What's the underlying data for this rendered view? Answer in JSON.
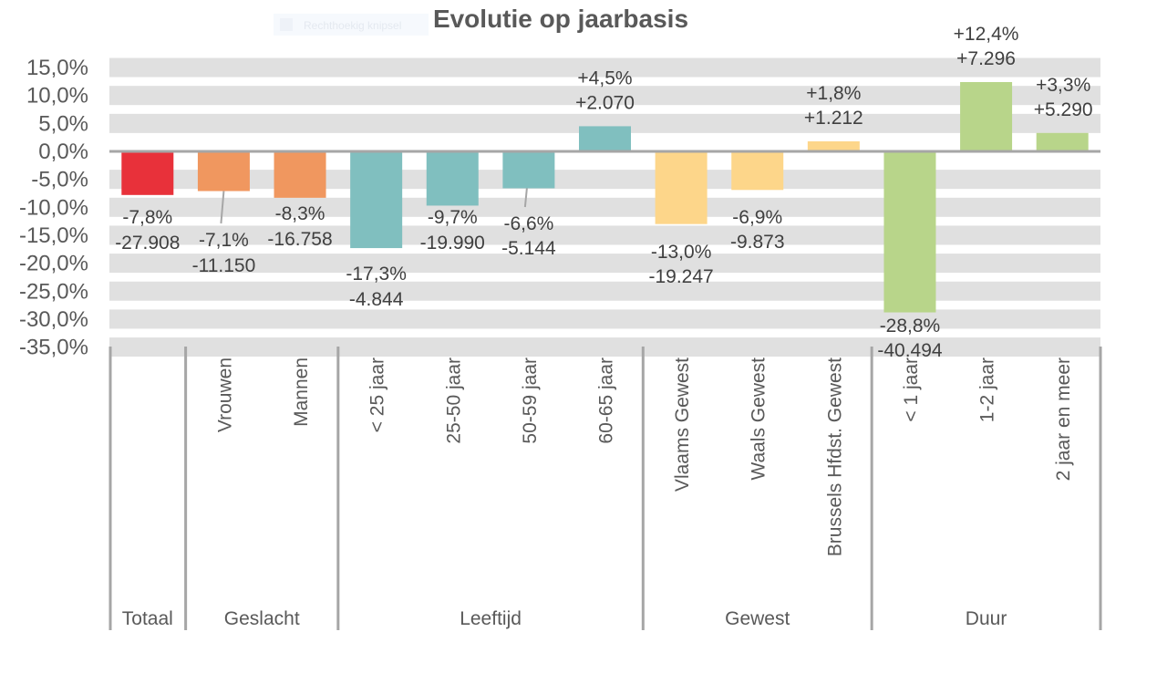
{
  "overlay": {
    "label": "Rechthoekig knipsel"
  },
  "chart_data": {
    "type": "bar",
    "title": "Evolutie op jaarbasis",
    "ylim": [
      -35,
      15
    ],
    "yticks": [
      15,
      10,
      5,
      0,
      -5,
      -10,
      -15,
      -20,
      -25,
      -30,
      -35
    ],
    "ytick_labels": [
      "15,0%",
      "10,0%",
      "5,0%",
      "0,0%",
      "-5,0%",
      "-10,0%",
      "-15,0%",
      "-20,0%",
      "-25,0%",
      "-30,0%",
      "-35,0%"
    ],
    "grid": "banded",
    "categories": [
      "Totaal",
      "Vrouwen",
      "Mannen",
      "< 25 jaar",
      "25-50 jaar",
      "50-59 jaar",
      "60-65 jaar",
      "Vlaams Gewest",
      "Waals Gewest",
      "Brussels Hfdst. Gewest",
      "< 1 jaar",
      "1-2 jaar",
      "2 jaar en meer"
    ],
    "category_labels_shown": [
      "",
      "Vrouwen",
      "Mannen",
      "< 25 jaar",
      "25-50 jaar",
      "50-59 jaar",
      "60-65 jaar",
      "Vlaams Gewest",
      "Waals Gewest",
      "Brussels Hfdst. Gewest",
      "< 1 jaar",
      "1-2 jaar",
      "2 jaar en meer"
    ],
    "values": [
      -7.8,
      -7.1,
      -8.3,
      -17.3,
      -9.7,
      -6.6,
      4.5,
      -13.0,
      -6.9,
      1.8,
      -28.8,
      12.4,
      3.3
    ],
    "pct_labels": [
      "-7,8%",
      "-7,1%",
      "-8,3%",
      "-17,3%",
      "-9,7%",
      "-6,6%",
      "+4,5%",
      "-13,0%",
      "-6,9%",
      "+1,8%",
      "-28,8%",
      "+12,4%",
      "+3,3%"
    ],
    "abs_labels": [
      "-27.908",
      "-11.150",
      "-16.758",
      "-4.844",
      "-19.990",
      "-5.144",
      "+2.070",
      "-19.247",
      "-9.873",
      "+1.212",
      "-40.494",
      "+7.296",
      "+5.290"
    ],
    "groups": [
      {
        "name": "Totaal",
        "count": 1,
        "color": "#E8313A"
      },
      {
        "name": "Geslacht",
        "count": 2,
        "color": "#F0975F"
      },
      {
        "name": "Leeftijd",
        "count": 4,
        "color": "#80BFBF"
      },
      {
        "name": "Gewest",
        "count": 3,
        "color": "#FDD68A"
      },
      {
        "name": "Duur",
        "count": 3,
        "color": "#B8D58A"
      }
    ]
  }
}
